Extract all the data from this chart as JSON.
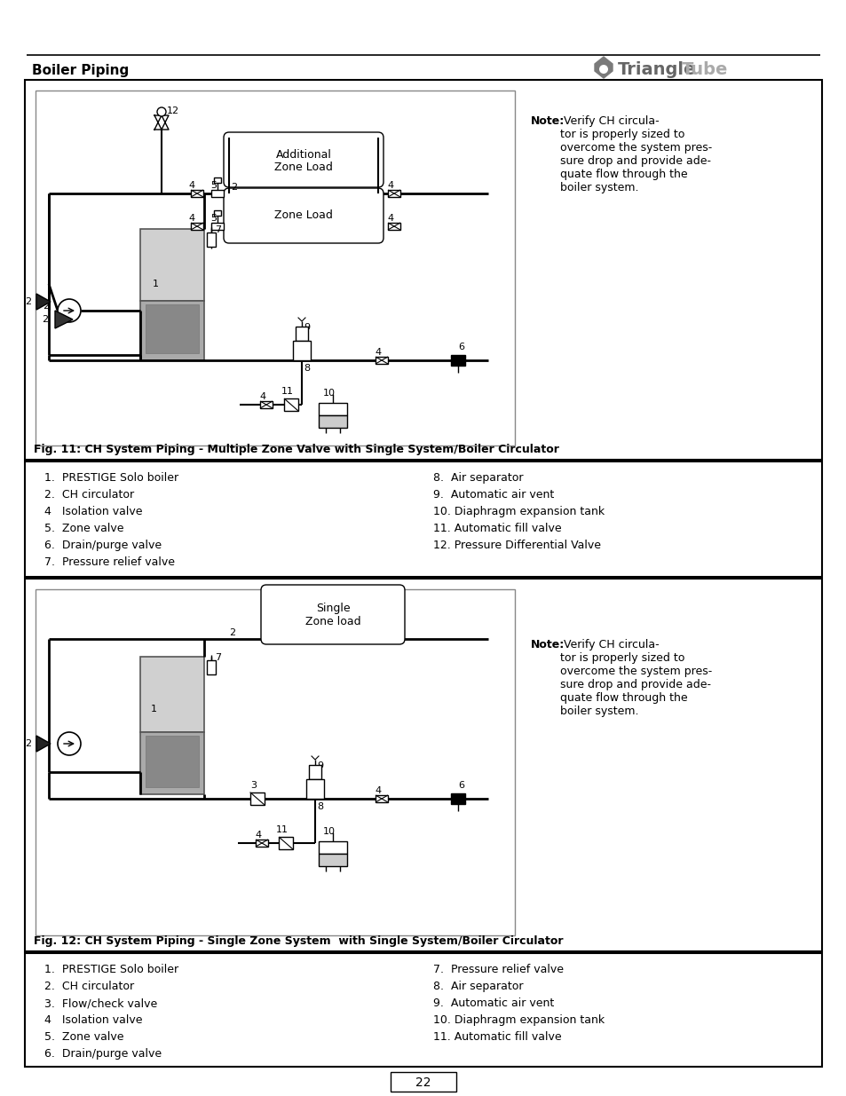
{
  "page_title": "Boiler Piping",
  "page_number": "22",
  "fig1_caption": "Fig. 11: CH System Piping - Multiple Zone Valve with Single System/Boiler Circulator",
  "fig2_caption": "Fig. 12: CH System Piping - Single Zone System  with Single System/Boiler Circulator",
  "note_text": "Note: Verify CH circula-\ntor is properly sized to\novercome the system pres-\nsure drop and provide ade-\nquate flow through the\nboiler system.",
  "legend1_left": [
    "1.  PRESTIGE Solo boiler",
    "2.  CH circulator",
    "4   Isolation valve",
    "5.  Zone valve",
    "6.  Drain/purge valve",
    "7.  Pressure relief valve"
  ],
  "legend1_right": [
    "8.  Air separator",
    "9.  Automatic air vent",
    "10. Diaphragm expansion tank",
    "11. Automatic fill valve",
    "12. Pressure Differential Valve"
  ],
  "legend2_left": [
    "1.  PRESTIGE Solo boiler",
    "2.  CH circulator",
    "3.  Flow/check valve",
    "4   Isolation valve",
    "5.  Zone valve",
    "6.  Drain/purge valve"
  ],
  "legend2_right": [
    "7.  Pressure relief valve",
    "8.  Air separator",
    "9.  Automatic air vent",
    "10. Diaphragm expansion tank",
    "11. Automatic fill valve"
  ],
  "bg_color": "#ffffff"
}
